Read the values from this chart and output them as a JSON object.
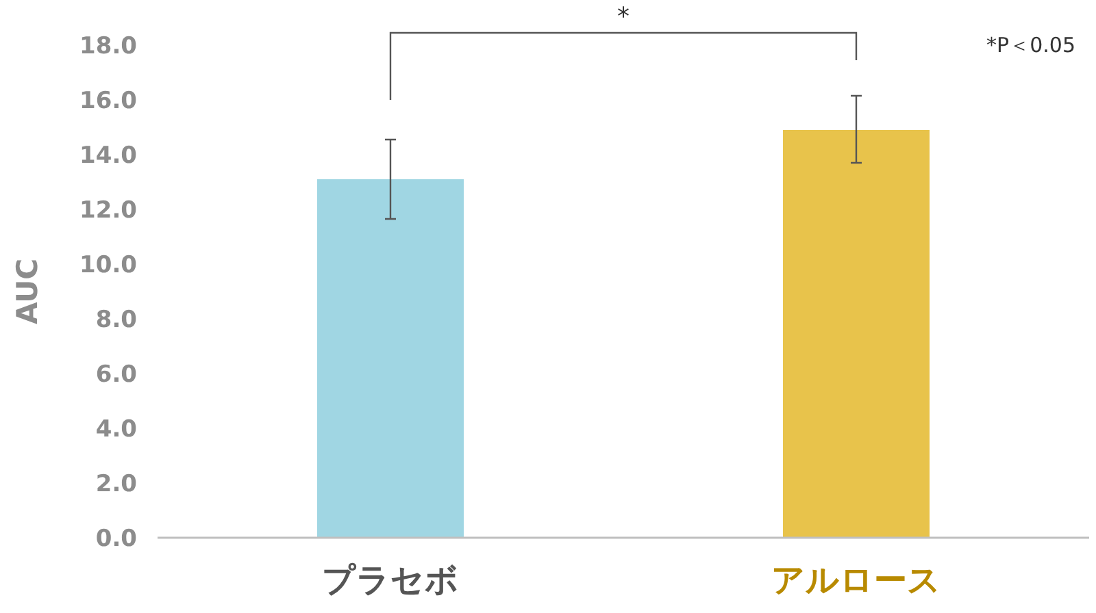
{
  "chart_data": {
    "type": "bar",
    "ylabel": "AUC",
    "categories": [
      "プラセボ",
      "アルロース"
    ],
    "values": [
      13.1,
      14.9
    ],
    "colors": [
      "#a0d6e3",
      "#e8c34b"
    ],
    "errors": [
      [
        11.65,
        14.55
      ],
      [
        13.7,
        16.15
      ]
    ],
    "ylim": [
      0,
      18
    ],
    "yticks": [
      {
        "value": 0,
        "label": "0.0"
      },
      {
        "value": 2,
        "label": "2.0"
      },
      {
        "value": 4,
        "label": "4.0"
      },
      {
        "value": 6,
        "label": "6.0"
      },
      {
        "value": 8,
        "label": "8.0"
      },
      {
        "value": 10,
        "label": "10.0"
      },
      {
        "value": 12,
        "label": "12.0"
      },
      {
        "value": 14,
        "label": "14.0"
      },
      {
        "value": 16,
        "label": "16.0"
      },
      {
        "value": 18,
        "label": "18.0"
      }
    ],
    "annotations": [
      "*",
      "*P＜0.05"
    ],
    "grid": false
  }
}
